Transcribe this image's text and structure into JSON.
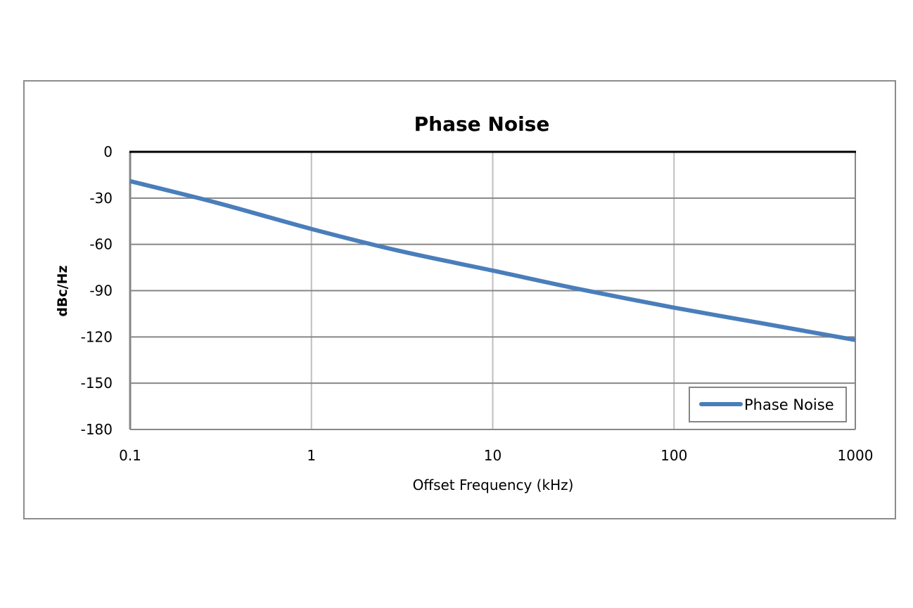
{
  "chart_data": {
    "type": "line",
    "title": "Phase Noise",
    "xlabel": "Offset Frequency (kHz)",
    "ylabel": "dBc/Hz",
    "x_scale": "log",
    "xlim": [
      0.1,
      1000
    ],
    "ylim": [
      -180,
      0
    ],
    "x_ticks": [
      0.1,
      1,
      10,
      100,
      1000
    ],
    "x_tick_labels": [
      "0.1",
      "1",
      "10",
      "100",
      "1000"
    ],
    "y_ticks": [
      0,
      -30,
      -60,
      -90,
      -120,
      -150,
      -180
    ],
    "y_tick_labels": [
      "0",
      "-30",
      "-60",
      "-90",
      "-120",
      "-150",
      "-180"
    ],
    "grid": true,
    "legend_position": "bottom-right",
    "series": [
      {
        "name": "Phase Noise",
        "color": "#4a7ebb",
        "x": [
          0.1,
          0.3,
          1,
          3,
          10,
          30,
          100,
          300,
          1000
        ],
        "y": [
          -19,
          -33,
          -50,
          -64,
          -77,
          -89,
          -101,
          -111,
          -122
        ]
      }
    ]
  }
}
